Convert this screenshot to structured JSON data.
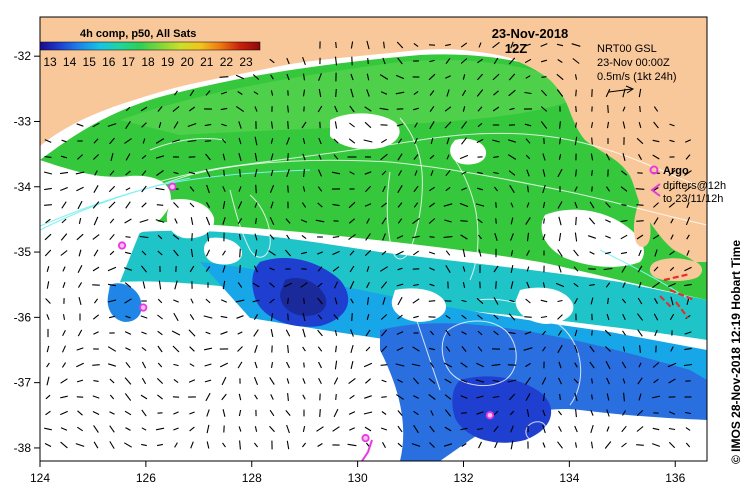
{
  "header": {
    "product": "4h comp, p50, All Sats",
    "date": "23-Nov-2018",
    "time": "12Z"
  },
  "colorbar": {
    "ticks": [
      "13",
      "14",
      "15",
      "16",
      "17",
      "18",
      "19",
      "20",
      "21",
      "22",
      "23"
    ],
    "stops": [
      "#1a0a8c",
      "#1e3fd0",
      "#1f86e8",
      "#17c2e6",
      "#20d49e",
      "#2fcf55",
      "#7fd63a",
      "#c9e02a",
      "#f2c51c",
      "#ee7a12",
      "#c8200e",
      "#8c0a08"
    ]
  },
  "current_legend": {
    "line1": "NRT00 GSL",
    "line2": "23-Nov 00:00Z",
    "line3": "0.5m/s (1kt 24h)"
  },
  "argo_legend": {
    "title": "Argo",
    "drifters_line1": "drifters@12h",
    "drifters_line2": "to 23/11/12h"
  },
  "side_label": "© IMOS 28-Nov-2018 12:19 Hobart Time",
  "axes": {
    "x_ticks": [
      "124",
      "126",
      "128",
      "130",
      "132",
      "134",
      "136"
    ],
    "y_ticks": [
      "-32",
      "-33",
      "-34",
      "-35",
      "-36",
      "-37",
      "-38"
    ]
  },
  "colors": {
    "land": "#f9c89a",
    "cloud": "#ffffff",
    "sst_green": "#36c83c",
    "sst_cyan": "#18c2e0",
    "sst_blue": "#1e5ad8",
    "argo": "#e838e0",
    "drifter": "#e03030"
  },
  "argo_floats": [
    {
      "lon": 126.5,
      "lat": -34.0
    },
    {
      "lon": 125.55,
      "lat": -34.9
    },
    {
      "lon": 125.95,
      "lat": -35.85
    },
    {
      "lon": 132.5,
      "lat": -37.5
    },
    {
      "lon": 130.15,
      "lat": -37.85
    }
  ]
}
